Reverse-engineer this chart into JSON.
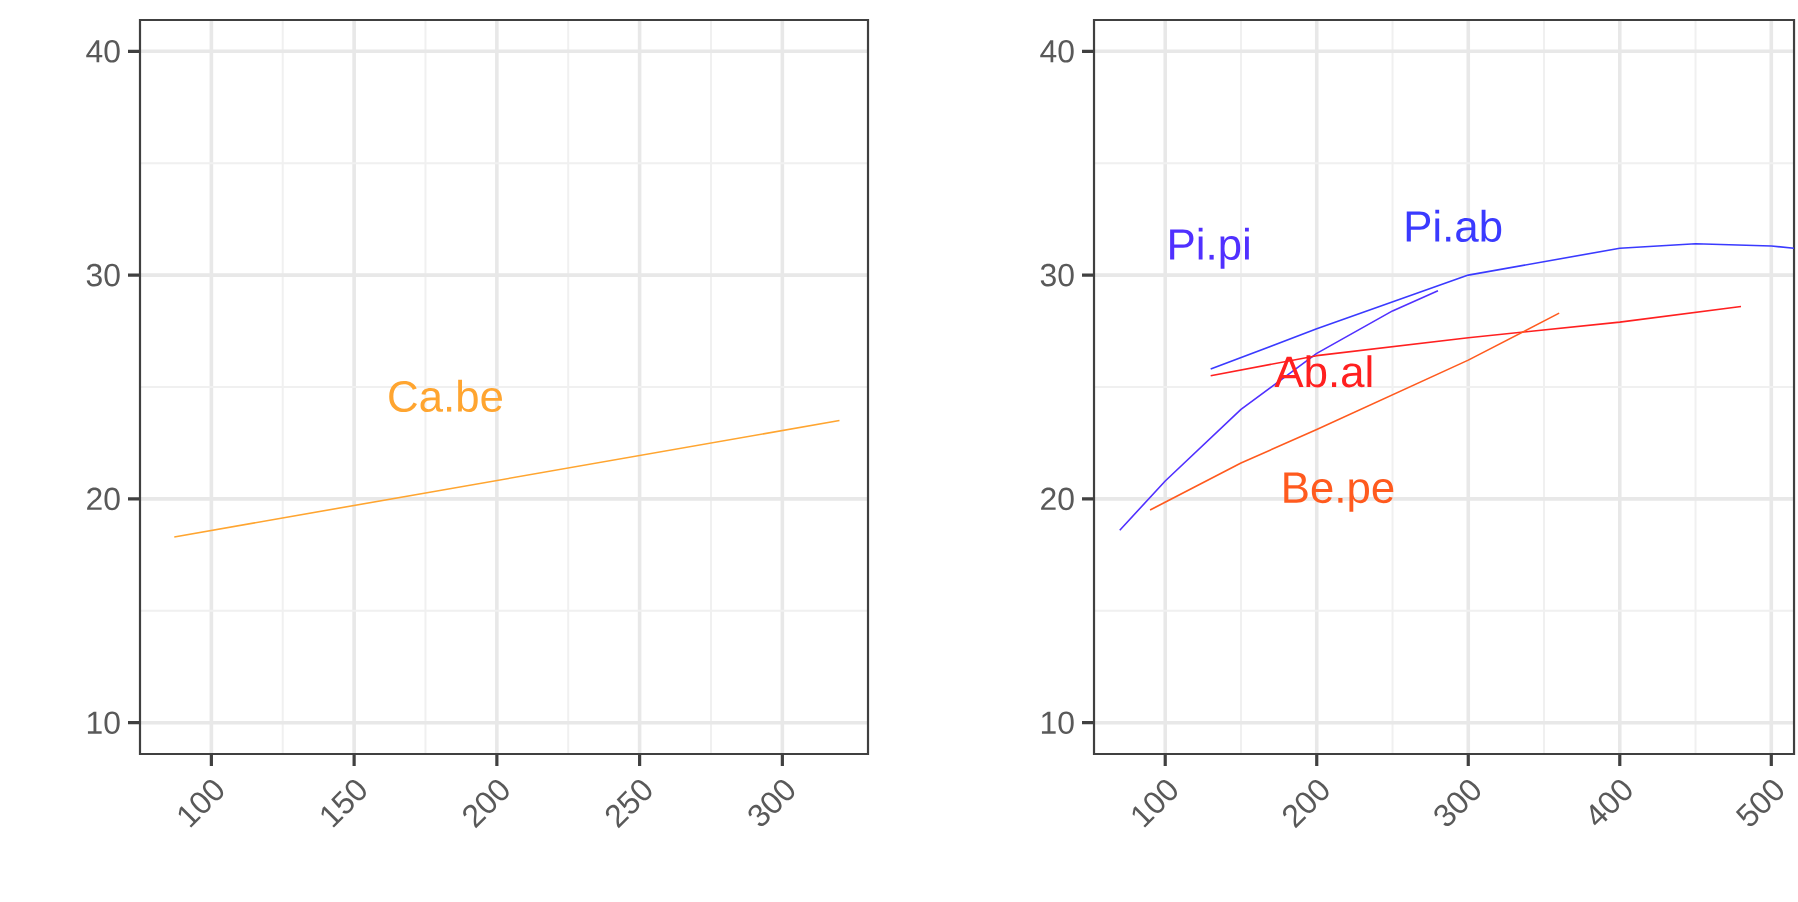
{
  "chart_data": [
    {
      "type": "line",
      "xlim": [
        75,
        330
      ],
      "ylim": [
        8.6,
        41.4
      ],
      "xticks": [
        100,
        150,
        200,
        250,
        300
      ],
      "yticks": [
        10,
        20,
        30,
        40
      ],
      "grid": true,
      "series": [
        {
          "name": "Ca.be",
          "color": "#ffa530",
          "x": [
            87,
            320
          ],
          "values": [
            18.3,
            23.5
          ]
        }
      ]
    },
    {
      "type": "line",
      "xlim": [
        53,
        515
      ],
      "ylim": [
        8.6,
        41.4
      ],
      "xticks": [
        100,
        200,
        300,
        400,
        500
      ],
      "yticks": [
        10,
        20,
        30,
        40
      ],
      "grid": true,
      "series": [
        {
          "name": "Pi.pi",
          "color": "#5030ff",
          "x": [
            70,
            100,
            150,
            200,
            250,
            280
          ],
          "values": [
            18.6,
            20.8,
            24.0,
            26.5,
            28.4,
            29.3
          ]
        },
        {
          "name": "Pi.ab",
          "color": "#3a3aff",
          "x": [
            130,
            200,
            300,
            400,
            450,
            500,
            515
          ],
          "values": [
            25.8,
            27.6,
            30.0,
            31.2,
            31.4,
            31.3,
            31.2
          ]
        },
        {
          "name": "Ab.al",
          "color": "#ff2020",
          "x": [
            130,
            200,
            300,
            400,
            480
          ],
          "values": [
            25.5,
            26.4,
            27.2,
            27.9,
            28.6
          ]
        },
        {
          "name": "Be.pe",
          "color": "#ff5a1e",
          "x": [
            90,
            150,
            200,
            300,
            360
          ],
          "values": [
            19.5,
            21.6,
            23.1,
            26.2,
            28.3
          ]
        }
      ]
    }
  ]
}
